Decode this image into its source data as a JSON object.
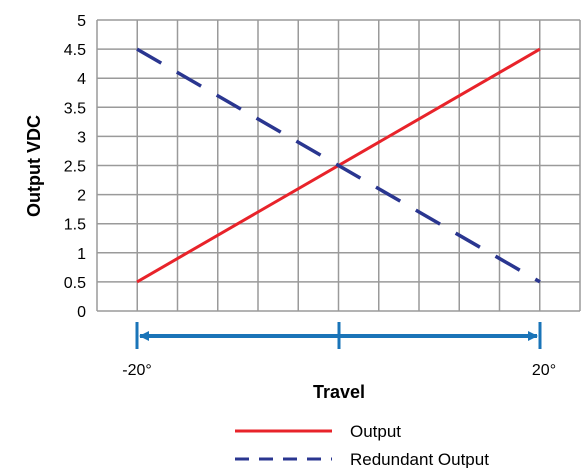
{
  "chart_data": {
    "type": "line",
    "title": "",
    "xlabel": "Travel",
    "ylabel": "Output VDC",
    "ylim": [
      0,
      5
    ],
    "yticks": [
      "0",
      "0.5",
      "1",
      "1.5",
      "2",
      "2.5",
      "3",
      "3.5",
      "4",
      "4.5",
      "5"
    ],
    "grid": true,
    "legend_position": "bottom-right",
    "travel_range_labels": [
      "-20°",
      "20°"
    ],
    "x": [
      -20,
      20
    ],
    "series": [
      {
        "name": "Output",
        "style": "solid",
        "color": "#e8232a",
        "values": [
          0.5,
          4.5
        ]
      },
      {
        "name": "Redundant Output",
        "style": "dashed",
        "color": "#2a3690",
        "values": [
          4.5,
          0.5
        ]
      }
    ],
    "arrow_color": "#1a74b8"
  }
}
